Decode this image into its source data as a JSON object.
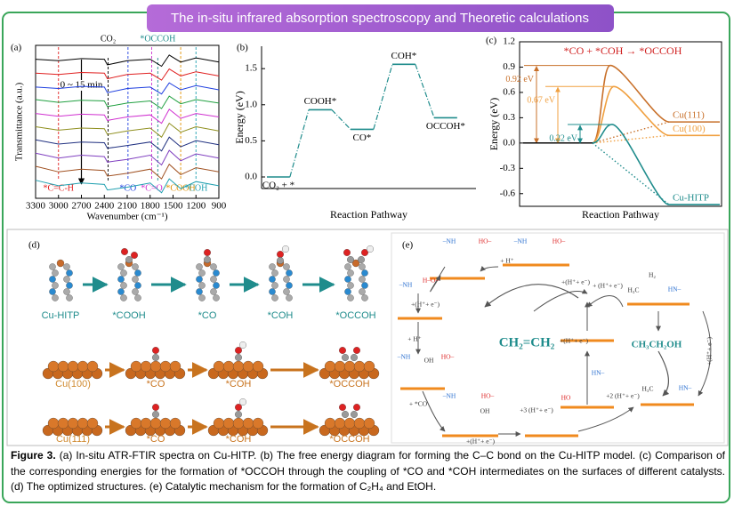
{
  "header": {
    "title": "The in-situ infrared absorption spectroscopy and Theoretic calculations"
  },
  "chart_data": [
    {
      "type": "spectra",
      "panel_label": "(a)",
      "x_label": "Wavenumber (cm⁻¹)",
      "y_label": "Transmittance (a.u.)",
      "x": [
        3300,
        3000,
        2700,
        2400,
        2360,
        2100,
        1800,
        1650,
        1550,
        1400,
        1200,
        900
      ],
      "xlim": [
        3300,
        900
      ],
      "xticks": [
        3300,
        3000,
        2700,
        2400,
        2100,
        1800,
        1500,
        1200,
        900
      ],
      "ylim": [
        0,
        11
      ],
      "series": [
        {
          "color": "#000000",
          "values": [
            10,
            9.9,
            10.05,
            10,
            9.6,
            9.9,
            10,
            9.5,
            10.3,
            9.8,
            10.1,
            9.8
          ]
        },
        {
          "color": "#e02020",
          "values": [
            9,
            8.9,
            9.05,
            9,
            8.6,
            8.9,
            9,
            8.5,
            9.3,
            8.8,
            9.1,
            8.8
          ]
        },
        {
          "color": "#2040e0",
          "values": [
            8,
            7.9,
            8.05,
            8,
            7.6,
            7.9,
            8,
            7.5,
            8.3,
            7.8,
            8.1,
            7.8
          ]
        },
        {
          "color": "#20a040",
          "values": [
            7.1,
            6.9,
            7.05,
            7,
            6.6,
            6.85,
            7,
            6.45,
            7.35,
            6.8,
            7.1,
            6.85
          ]
        },
        {
          "color": "#d030d0",
          "values": [
            6.1,
            5.9,
            6.05,
            6,
            5.6,
            5.85,
            6,
            5.4,
            6.4,
            5.75,
            6.1,
            5.85
          ]
        },
        {
          "color": "#909020",
          "values": [
            5.15,
            4.9,
            5.05,
            5,
            4.6,
            4.85,
            5.05,
            4.4,
            5.4,
            4.75,
            5.15,
            4.85
          ]
        },
        {
          "color": "#203080",
          "values": [
            4.2,
            3.9,
            4.05,
            4,
            3.6,
            3.8,
            4.05,
            3.4,
            4.4,
            3.7,
            4.15,
            3.85
          ]
        },
        {
          "color": "#8040c0",
          "values": [
            3.25,
            2.9,
            3.1,
            3,
            2.6,
            2.8,
            3.1,
            2.4,
            3.45,
            2.7,
            3.2,
            2.9
          ]
        },
        {
          "color": "#a05020",
          "values": [
            2.3,
            1.9,
            2.1,
            2,
            1.6,
            1.8,
            2.1,
            1.4,
            2.45,
            1.7,
            2.2,
            1.9
          ]
        },
        {
          "color": "#20a0b0",
          "values": [
            1.3,
            0.9,
            1.1,
            1,
            0.6,
            0.8,
            1.1,
            0.4,
            1.4,
            0.7,
            1.2,
            0.9
          ]
        }
      ],
      "annotations": [
        {
          "text": "CO₂",
          "x": 2350,
          "position": "top",
          "color": "#000000"
        },
        {
          "text": "*OCCOH",
          "x": 1700,
          "position": "top",
          "color": "#1f8c8c"
        },
        {
          "text": "0 ~ 15 min",
          "x": 2700,
          "position": "arrow",
          "color": "#000000"
        },
        {
          "text": "*C=C-H",
          "x": 3000,
          "position": "bottom",
          "color": "#e02020"
        },
        {
          "text": "*CO",
          "x": 2090,
          "position": "bottom",
          "color": "#2040e0"
        },
        {
          "text": "*C=O",
          "x": 1780,
          "position": "bottom",
          "color": "#d030d0"
        },
        {
          "text": "*COOH",
          "x": 1400,
          "position": "bottom",
          "color": "#e09000"
        },
        {
          "text": "*COH",
          "x": 1200,
          "position": "bottom",
          "color": "#20a0b0"
        }
      ]
    },
    {
      "type": "energy-steps",
      "panel_label": "(b)",
      "x_label": "Reaction Pathway",
      "y_label": "Energy (eV)",
      "color": "#1f8c8c",
      "categories": [
        "CO₂ + *",
        "COOH*",
        "CO*",
        "COH*",
        "OCCOH*"
      ],
      "values": [
        0,
        0.93,
        0.66,
        1.56,
        0.82
      ],
      "ylim": [
        -0.16,
        1.81
      ],
      "yticks": [
        {
          "value": 0,
          "label": "0.0"
        },
        0.5,
        {
          "value": 1,
          "label": "1.0"
        },
        1.5
      ]
    },
    {
      "type": "energy-profile",
      "panel_label": "(c)",
      "title": "*CO + *COH → *OCCOH",
      "x_label": "Reaction Pathway",
      "y_label": "Energy (eV)",
      "ylim": [
        -0.75,
        1.2
      ],
      "yticks": [
        1.2,
        0.9,
        0.6,
        0.3,
        {
          "value": 0,
          "label": "0.0"
        },
        -0.3,
        -0.6
      ],
      "series": [
        {
          "name": "Cu(111)",
          "color": "#c8702a",
          "values": [
            0,
            0.92,
            0.25
          ],
          "value_labels": [
            null,
            "0.92 eV",
            null
          ]
        },
        {
          "name": "Cu(100)",
          "color": "#f0a040",
          "values": [
            0,
            0.67,
            0.09
          ],
          "value_labels": [
            null,
            "0.67 eV",
            null
          ]
        },
        {
          "name": "Cu-HITP",
          "color": "#1f8c8c",
          "values": [
            0,
            0.22,
            -0.73
          ],
          "value_labels": [
            null,
            "0.22 eV",
            null
          ]
        }
      ]
    }
  ],
  "panel_d": {
    "label": "(d)",
    "rows": [
      [
        "Cu-HITP",
        "*COOH",
        "*CO",
        "*COH",
        "*OCCOH"
      ],
      [
        "Cu(100)",
        "*CO",
        "*COH",
        "*OCCOH"
      ],
      [
        "Cu(111)",
        "*CO",
        "*COH",
        "*OCCOH"
      ]
    ]
  },
  "panel_e": {
    "label": "(e)",
    "products": [
      "CH₂=CH₂",
      "CH₃CH₂OH"
    ],
    "texts": [
      "–NH",
      "HO–",
      "–NH",
      "HO–",
      "+ H⁺",
      "–NH",
      "H–O–",
      "+(H⁺+ e⁻)",
      "+ H⁺",
      "–NH",
      "OH",
      "HO–",
      "+ *CO",
      "–NH",
      "HO–",
      "OH",
      "+(H⁺+ e⁻)",
      "HO",
      "+3 (H⁺+ e⁻)",
      "+2 (H⁺+ e⁻)",
      "HN–",
      "+(H⁺+ e⁻)",
      "+(H⁺+ e⁻)",
      "+ (H⁺+ e⁻)",
      "H₃C",
      "HN–",
      "H₂",
      "+(H⁺+ e⁻)",
      "H₃C",
      "HN–"
    ]
  },
  "caption": {
    "label": "Figure 3.",
    "text": " (a) In-situ ATR-FTIR spectra on Cu-HITP. (b) The free energy diagram for forming the C–C bond on the Cu-HITP model. (c) Comparison of the corresponding energies for the formation of *OCCOH through the coupling of *CO and *COH intermediates on the surfaces of different catalysts. (d) The optimized structures. (e) Catalytic mechanism for the formation of C₂H₄ and EtOH."
  }
}
